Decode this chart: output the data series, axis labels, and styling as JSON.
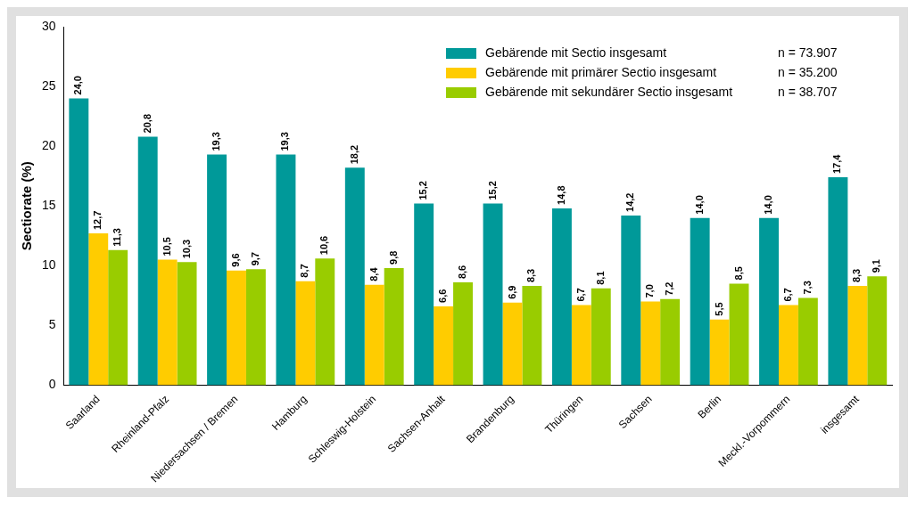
{
  "chart_data": {
    "type": "bar",
    "categories": [
      "Saarland",
      "Rheinland-Pfalz",
      "Niedersachsen / Bremen",
      "Hamburg",
      "Schleswig-Holstein",
      "Sachsen-Anhalt",
      "Brandenburg",
      "Thüringen",
      "Sachsen",
      "Berlin",
      "Meckl.-Vorpommern",
      "insgesamt"
    ],
    "series": [
      {
        "name": "Gebärende mit Sectio insgesamt",
        "color": "#009999",
        "values": [
          24.0,
          20.8,
          19.3,
          19.3,
          18.2,
          15.2,
          15.2,
          14.8,
          14.2,
          14.0,
          14.0,
          17.4
        ],
        "value_labels": [
          "24,0",
          "20,8",
          "19,3",
          "19,3",
          "18,2",
          "15,2",
          "15,2",
          "14,8",
          "14,2",
          "14,0",
          "14,0",
          "17,4"
        ]
      },
      {
        "name": "Gebärende mit primärer Sectio insgesamt",
        "color": "#ffcc00",
        "values": [
          12.7,
          10.5,
          9.6,
          8.7,
          8.4,
          6.6,
          6.9,
          6.7,
          7.0,
          5.5,
          6.7,
          8.3
        ],
        "value_labels": [
          "12,7",
          "10,5",
          "9,6",
          "8,7",
          "8,4",
          "6,6",
          "6,9",
          "6,7",
          "7,0",
          "5,5",
          "6,7",
          "8,3"
        ]
      },
      {
        "name": "Gebärende mit sekundärer Sectio insgesamt",
        "color": "#99cc00",
        "values": [
          11.3,
          10.3,
          9.7,
          10.6,
          9.8,
          8.6,
          8.3,
          8.1,
          7.2,
          8.5,
          7.3,
          9.1
        ],
        "value_labels": [
          "11,3",
          "10,3",
          "9,7",
          "10,6",
          "9,8",
          "8,6",
          "8,3",
          "8,1",
          "7,2",
          "8,5",
          "7,3",
          "9,1"
        ]
      }
    ],
    "ylabel": "Sectiorate (%)",
    "ylim": [
      0,
      30
    ],
    "yticks": [
      0,
      5,
      10,
      15,
      20,
      25,
      30
    ],
    "annotations": [
      "n = 73.907",
      "n = 35.200",
      "n = 38.707"
    ],
    "grid": false,
    "legend": "top right"
  }
}
